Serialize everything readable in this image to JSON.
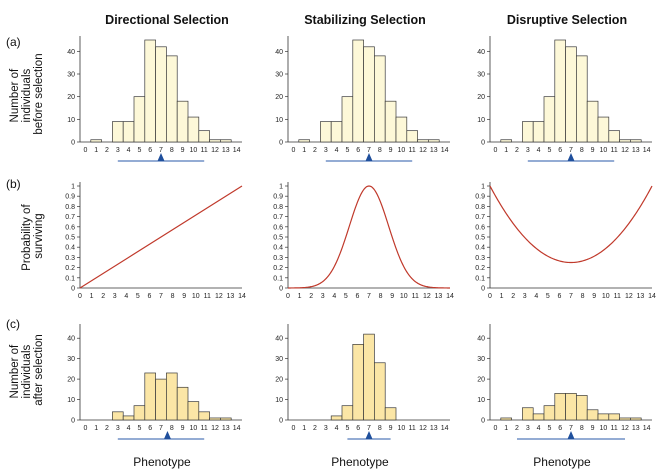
{
  "columns": [
    "Directional Selection",
    "Stabilizing Selection",
    "Disruptive Selection"
  ],
  "row_labels": [
    "(a)",
    "(b)",
    "(c)"
  ],
  "ylabels": {
    "before": [
      "Number of",
      "individuals",
      "before selection"
    ],
    "prob": [
      "Probability of",
      "surviving"
    ],
    "after": [
      "Number of",
      "individuals",
      "after selection"
    ]
  },
  "xlabel": "Phenotype",
  "colors": {
    "bar_before": "#fdf8d8",
    "bar_after": "#fbe6a6",
    "bar_stroke": "#3a3a3a",
    "curve": "#c0392b",
    "mean_line": "#2a5aa8",
    "mean_marker": "#1f4f9c"
  },
  "chart_data": [
    {
      "type": "bar",
      "row": "before",
      "column": "Directional Selection",
      "categories": [
        0,
        1,
        2,
        3,
        4,
        5,
        6,
        7,
        8,
        9,
        10,
        11,
        12,
        13,
        14
      ],
      "values": [
        0,
        1,
        0,
        9,
        9,
        20,
        45,
        42,
        38,
        18,
        11,
        5,
        1,
        1,
        0
      ],
      "ylim": [
        0,
        45
      ],
      "yticks": [
        0,
        10,
        20,
        30,
        40
      ],
      "mean": 7,
      "range": [
        3,
        11
      ]
    },
    {
      "type": "bar",
      "row": "before",
      "column": "Stabilizing Selection",
      "categories": [
        0,
        1,
        2,
        3,
        4,
        5,
        6,
        7,
        8,
        9,
        10,
        11,
        12,
        13,
        14
      ],
      "values": [
        0,
        1,
        0,
        9,
        9,
        20,
        45,
        42,
        38,
        18,
        11,
        5,
        1,
        1,
        0
      ],
      "ylim": [
        0,
        45
      ],
      "yticks": [
        0,
        10,
        20,
        30,
        40
      ],
      "mean": 7,
      "range": [
        3,
        11
      ]
    },
    {
      "type": "bar",
      "row": "before",
      "column": "Disruptive Selection",
      "categories": [
        0,
        1,
        2,
        3,
        4,
        5,
        6,
        7,
        8,
        9,
        10,
        11,
        12,
        13,
        14
      ],
      "values": [
        0,
        1,
        0,
        9,
        9,
        20,
        45,
        42,
        38,
        18,
        11,
        5,
        1,
        1,
        0
      ],
      "ylim": [
        0,
        45
      ],
      "yticks": [
        0,
        10,
        20,
        30,
        40
      ],
      "mean": 7,
      "range": [
        3,
        11
      ]
    },
    {
      "type": "line",
      "row": "prob",
      "column": "Directional Selection",
      "curve": "linear",
      "x": [
        0,
        14
      ],
      "y": [
        0,
        1
      ],
      "xlim": [
        0,
        14
      ],
      "ylim": [
        0,
        1
      ],
      "yticks": [
        0,
        0.1,
        0.2,
        0.3,
        0.4,
        0.5,
        0.6,
        0.7,
        0.8,
        0.9,
        1
      ]
    },
    {
      "type": "line",
      "row": "prob",
      "column": "Stabilizing Selection",
      "curve": "bell",
      "x": [
        0,
        1,
        2,
        3,
        4,
        5,
        6,
        7,
        8,
        9,
        10,
        11,
        12,
        13,
        14
      ],
      "y": [
        0,
        0,
        0.01,
        0.05,
        0.17,
        0.45,
        0.83,
        1,
        0.83,
        0.45,
        0.17,
        0.05,
        0.01,
        0,
        0
      ],
      "xlim": [
        0,
        14
      ],
      "ylim": [
        0,
        1
      ],
      "yticks": [
        0,
        0.1,
        0.2,
        0.3,
        0.4,
        0.5,
        0.6,
        0.7,
        0.8,
        0.9,
        1
      ]
    },
    {
      "type": "line",
      "row": "prob",
      "column": "Disruptive Selection",
      "curve": "u-shape",
      "x": [
        0,
        1,
        2,
        3,
        4,
        5,
        6,
        7,
        8,
        9,
        10,
        11,
        12,
        13,
        14
      ],
      "y": [
        1,
        0.78,
        0.6,
        0.46,
        0.37,
        0.3,
        0.26,
        0.25,
        0.26,
        0.3,
        0.37,
        0.46,
        0.6,
        0.78,
        1
      ],
      "xlim": [
        0,
        14
      ],
      "ylim": [
        0,
        1
      ],
      "yticks": [
        0,
        0.1,
        0.2,
        0.3,
        0.4,
        0.5,
        0.6,
        0.7,
        0.8,
        0.9,
        1
      ]
    },
    {
      "type": "bar",
      "row": "after",
      "column": "Directional Selection",
      "categories": [
        0,
        1,
        2,
        3,
        4,
        5,
        6,
        7,
        8,
        9,
        10,
        11,
        12,
        13,
        14
      ],
      "values": [
        0,
        0,
        0,
        4,
        2,
        7,
        23,
        20,
        23,
        16,
        9,
        4,
        1,
        1,
        0
      ],
      "ylim": [
        0,
        45
      ],
      "yticks": [
        0,
        10,
        20,
        30,
        40
      ],
      "mean": 7.6,
      "range": [
        3,
        11
      ]
    },
    {
      "type": "bar",
      "row": "after",
      "column": "Stabilizing Selection",
      "categories": [
        0,
        1,
        2,
        3,
        4,
        5,
        6,
        7,
        8,
        9,
        10,
        11,
        12,
        13,
        14
      ],
      "values": [
        0,
        0,
        0,
        0,
        2,
        7,
        37,
        42,
        28,
        6,
        0,
        0,
        0,
        0,
        0
      ],
      "ylim": [
        0,
        45
      ],
      "yticks": [
        0,
        10,
        20,
        30,
        40
      ],
      "mean": 7,
      "range": [
        5,
        9
      ]
    },
    {
      "type": "bar",
      "row": "after",
      "column": "Disruptive Selection",
      "categories": [
        0,
        1,
        2,
        3,
        4,
        5,
        6,
        7,
        8,
        9,
        10,
        11,
        12,
        13,
        14
      ],
      "values": [
        0,
        1,
        0,
        6,
        3,
        7,
        13,
        13,
        12,
        5,
        3,
        3,
        1,
        1,
        0
      ],
      "ylim": [
        0,
        45
      ],
      "yticks": [
        0,
        10,
        20,
        30,
        40
      ],
      "mean": 7,
      "range": [
        2,
        12
      ]
    }
  ]
}
